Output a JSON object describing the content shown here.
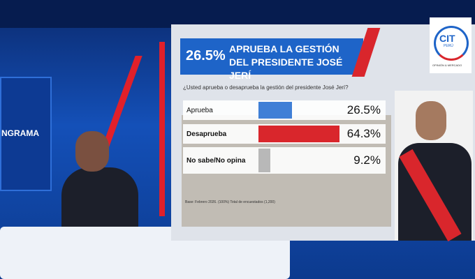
{
  "chart_data": {
    "type": "bar",
    "headline": "26.5%",
    "title": "APRUEBA LA GESTIÓN DEL PRESIDENTE JOSÉ JERÍ",
    "subtitle": "¿Usted aprueba o desaprueba la gestión del presidente José Jerí?",
    "categories": [
      "Aprueba",
      "Desaprueba",
      "No sabe/No opina"
    ],
    "values": [
      26.5,
      64.3,
      9.2
    ],
    "value_labels": [
      "26.5%",
      "64.3%",
      "9.2%"
    ],
    "colors": [
      "#3f7fd6",
      "#d9262c",
      "#b8b8b8"
    ],
    "note": "Base: Febrero 2026. (100%) Total de encuestados (1,200)"
  },
  "logo": {
    "name": "CIT",
    "country": "PERÚ",
    "tagline": "OPINIÓN & MERCADO"
  },
  "studio_screen": {
    "text": "NGRAMA"
  }
}
